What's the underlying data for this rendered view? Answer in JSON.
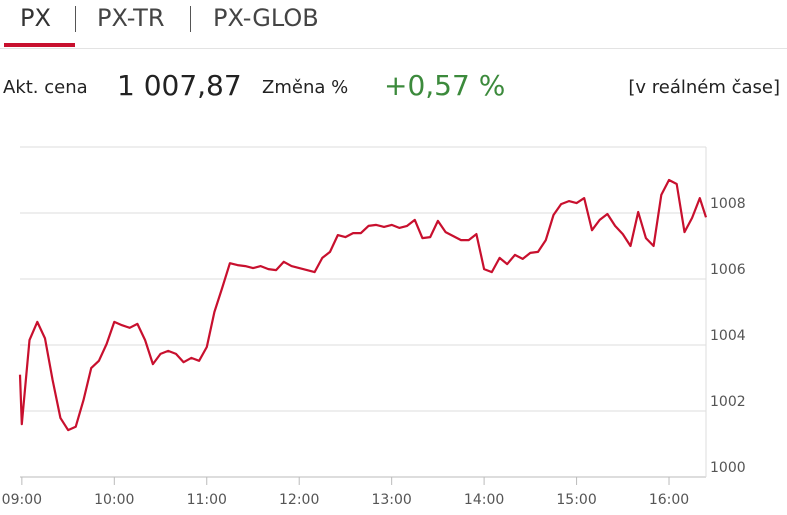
{
  "tabs": [
    "PX",
    "PX-TR",
    "PX-GLOB"
  ],
  "info": {
    "price_label": "Akt. cena",
    "price": "1 007,87",
    "change_label": "Změna %",
    "change": "+0,57 %",
    "realtime": "[v reálném čase]"
  },
  "chart_data": {
    "type": "line",
    "color": "#c8102e",
    "grid": true,
    "xlim": [
      8.98,
      16.4
    ],
    "ylim": [
      1000,
      1010
    ],
    "xticks": [
      {
        "value": 9,
        "label": "09:00"
      },
      {
        "value": 10,
        "label": "10:00"
      },
      {
        "value": 11,
        "label": "11:00"
      },
      {
        "value": 12,
        "label": "12:00"
      },
      {
        "value": 13,
        "label": "13:00"
      },
      {
        "value": 14,
        "label": "14:00"
      },
      {
        "value": 15,
        "label": "15:00"
      },
      {
        "value": 16,
        "label": "16:00"
      }
    ],
    "yticks": [
      1000,
      1002,
      1004,
      1006,
      1008
    ],
    "x": [
      8.98,
      9,
      9.083,
      9.167,
      9.25,
      9.333,
      9.417,
      9.5,
      9.583,
      9.667,
      9.75,
      9.833,
      9.917,
      10,
      10.083,
      10.167,
      10.25,
      10.333,
      10.417,
      10.5,
      10.583,
      10.667,
      10.75,
      10.833,
      10.917,
      11,
      11.083,
      11.167,
      11.25,
      11.333,
      11.417,
      11.5,
      11.583,
      11.667,
      11.75,
      11.833,
      11.917,
      12,
      12.083,
      12.167,
      12.25,
      12.333,
      12.417,
      12.5,
      12.583,
      12.667,
      12.75,
      12.833,
      12.917,
      13,
      13.083,
      13.167,
      13.25,
      13.333,
      13.417,
      13.5,
      13.583,
      13.667,
      13.75,
      13.833,
      13.917,
      14,
      14.083,
      14.167,
      14.25,
      14.333,
      14.417,
      14.5,
      14.583,
      14.667,
      14.75,
      14.833,
      14.917,
      15,
      15.083,
      15.167,
      15.25,
      15.333,
      15.417,
      15.5,
      15.583,
      15.667,
      15.75,
      15.833,
      15.917,
      16,
      16.083,
      16.167,
      16.25,
      16.333,
      16.4
    ],
    "values": [
      1003.1,
      1001.6,
      1004.15,
      1004.7,
      1004.2,
      1002.94,
      1001.79,
      1001.42,
      1001.52,
      1002.33,
      1003.3,
      1003.52,
      1004.03,
      1004.7,
      1004.6,
      1004.52,
      1004.64,
      1004.15,
      1003.42,
      1003.73,
      1003.82,
      1003.73,
      1003.48,
      1003.61,
      1003.52,
      1003.94,
      1005.0,
      1005.73,
      1006.48,
      1006.42,
      1006.39,
      1006.33,
      1006.39,
      1006.3,
      1006.27,
      1006.52,
      1006.39,
      1006.33,
      1006.27,
      1006.21,
      1006.64,
      1006.82,
      1007.33,
      1007.27,
      1007.39,
      1007.39,
      1007.61,
      1007.64,
      1007.58,
      1007.64,
      1007.55,
      1007.61,
      1007.79,
      1007.24,
      1007.27,
      1007.76,
      1007.42,
      1007.3,
      1007.18,
      1007.18,
      1007.36,
      1006.3,
      1006.21,
      1006.64,
      1006.45,
      1006.73,
      1006.61,
      1006.79,
      1006.82,
      1007.18,
      1007.94,
      1008.27,
      1008.36,
      1008.3,
      1008.45,
      1007.48,
      1007.79,
      1007.97,
      1007.61,
      1007.36,
      1007.0,
      1008.03,
      1007.24,
      1007.0,
      1008.55,
      1009.0,
      1008.88,
      1007.42,
      1007.85,
      1008.45,
      1007.87
    ]
  }
}
